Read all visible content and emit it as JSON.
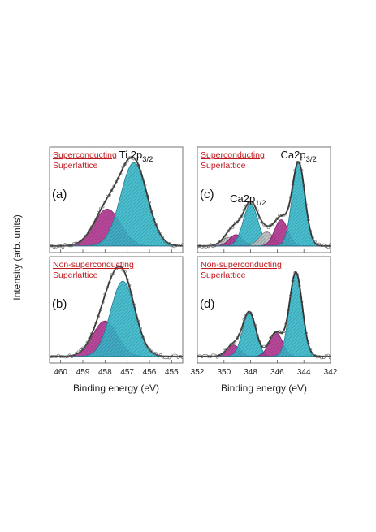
{
  "colors": {
    "magenta": "#b0338f",
    "cyan": "#35b7c9",
    "gray": "#a9a9a9",
    "red_text": "#c0181d",
    "envelope": "#333333"
  },
  "ylabel": "Intensity (arb. units)",
  "chart_data": [
    {
      "id": "a",
      "type": "area",
      "panel_label": "(a)",
      "tag": {
        "underlined": "Superconducting",
        "line2": "Superlattice"
      },
      "peak_labels": [
        {
          "base": "Ti 2p",
          "sub": "3/2",
          "x": 456.6
        }
      ],
      "xlim": [
        460.5,
        454.5
      ],
      "xticks": [],
      "xlabel": "",
      "fit": {
        "components": [
          {
            "color": "magenta",
            "center": 457.9,
            "amplitude": 0.42,
            "sigma": 0.6
          },
          {
            "color": "cyan",
            "center": 456.7,
            "amplitude": 0.95,
            "sigma": 0.6
          }
        ],
        "background": 0.02
      }
    },
    {
      "id": "b",
      "type": "area",
      "panel_label": "(b)",
      "tag": {
        "underlined": "Non-superconducting",
        "line2": "Superlattice"
      },
      "peak_labels": [],
      "xlim": [
        460.5,
        454.5
      ],
      "xticks": [
        460,
        459,
        458,
        457,
        456,
        455
      ],
      "xlabel": "Binding energy (eV)",
      "fit": {
        "components": [
          {
            "color": "magenta",
            "center": 458.0,
            "amplitude": 0.4,
            "sigma": 0.55
          },
          {
            "color": "cyan",
            "center": 457.2,
            "amplitude": 0.85,
            "sigma": 0.55
          }
        ],
        "background": 0.02
      }
    },
    {
      "id": "c",
      "type": "area",
      "panel_label": "(c)",
      "tag": {
        "underlined": "Superconducting",
        "line2": "Superlattice"
      },
      "peak_labels": [
        {
          "base": "Ca2p",
          "sub": "1/2",
          "x": 348.2
        },
        {
          "base": "Ca2p",
          "sub": "3/2",
          "x": 344.4
        }
      ],
      "xlim": [
        352,
        342
      ],
      "xticks": [],
      "xlabel": "",
      "fit": {
        "components": [
          {
            "color": "gray",
            "center": 349.6,
            "amplitude": 0.1,
            "sigma": 0.55
          },
          {
            "color": "magenta",
            "center": 349.1,
            "amplitude": 0.13,
            "sigma": 0.5
          },
          {
            "color": "cyan",
            "center": 348.0,
            "amplitude": 0.48,
            "sigma": 0.55
          },
          {
            "color": "gray",
            "center": 346.8,
            "amplitude": 0.16,
            "sigma": 0.55
          },
          {
            "color": "magenta",
            "center": 345.7,
            "amplitude": 0.3,
            "sigma": 0.5
          },
          {
            "color": "cyan",
            "center": 344.4,
            "amplitude": 0.95,
            "sigma": 0.48
          }
        ],
        "background": 0.02
      }
    },
    {
      "id": "d",
      "type": "area",
      "panel_label": "(d)",
      "tag": {
        "underlined": "Non-superconducting",
        "line2": "Superlattice"
      },
      "peak_labels": [],
      "xlim": [
        352,
        342
      ],
      "xticks": [
        352,
        350,
        348,
        346,
        344,
        342
      ],
      "xlabel": "Binding energy (eV)",
      "fit": {
        "components": [
          {
            "color": "magenta",
            "center": 349.3,
            "amplitude": 0.13,
            "sigma": 0.5
          },
          {
            "color": "cyan",
            "center": 348.1,
            "amplitude": 0.5,
            "sigma": 0.5
          },
          {
            "color": "magenta",
            "center": 346.1,
            "amplitude": 0.27,
            "sigma": 0.5
          },
          {
            "color": "cyan",
            "center": 344.6,
            "amplitude": 0.95,
            "sigma": 0.48
          }
        ],
        "background": 0.02
      }
    }
  ]
}
